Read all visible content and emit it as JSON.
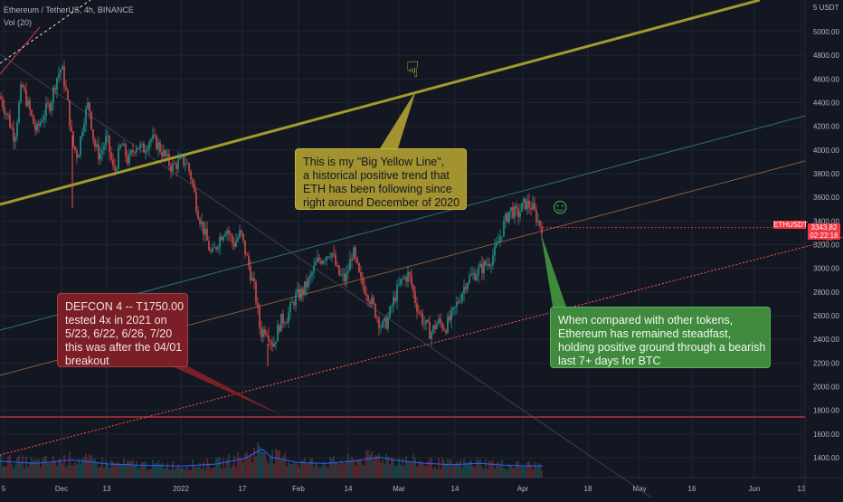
{
  "legend": {
    "title": "Ethereum / TetherUS, 4h, BINANCE",
    "volume": "Vol (20)"
  },
  "currency": "5 USDT",
  "ticker_label": "ETHUSDT",
  "last_price": "3343.82",
  "countdown": "02:22:18",
  "emoji_pointer": "☟",
  "emoji_smile": "☺",
  "notes": {
    "yellow": [
      "This is my \"Big Yellow Line\",",
      "a historical positive trend that",
      "ETH has been following since",
      "right around December of 2020"
    ],
    "red": [
      "DEFCON 4 -- T1750.00",
      "tested 4x in 2021 on",
      "5/23, 6/22, 6/26, 7/20",
      "this was after the 04/01",
      "breakout"
    ],
    "green": [
      "When compared with other tokens,",
      "Ethereum has remained steadfast,",
      "holding positive ground through a bearish",
      "last 7+ days for BTC"
    ]
  },
  "colors": {
    "background": "#131722",
    "up": "#26a69a",
    "down": "#ef5350",
    "yellow_line": "#a39a2c",
    "support_dotted": "#e04848",
    "horizontal_level": "#d9343e",
    "volume_line": "#2962ff"
  },
  "chart_data": {
    "type": "candlestick",
    "title": "Ethereum / TetherUS, 4h, BINANCE",
    "x_ticks": [
      "5",
      "Dec",
      "13",
      "2022",
      "17",
      "Feb",
      "14",
      "Mar",
      "14",
      "Apr",
      "18",
      "May",
      "16",
      "Jun",
      "13"
    ],
    "y_ticks": [
      1400,
      1600,
      1800,
      2000,
      2200,
      2400,
      2600,
      2800,
      3000,
      3200,
      3400,
      3600,
      3800,
      4000,
      4200,
      4400,
      4600,
      4800,
      5000
    ],
    "ylim": [
      1300,
      5100
    ],
    "close_path": [
      [
        0,
        4450
      ],
      [
        8,
        4300
      ],
      [
        16,
        4100
      ],
      [
        24,
        4550
      ],
      [
        32,
        4350
      ],
      [
        40,
        4150
      ],
      [
        48,
        4300
      ],
      [
        56,
        4400
      ],
      [
        62,
        4600
      ],
      [
        68,
        4700
      ],
      [
        74,
        4450
      ],
      [
        80,
        4050
      ],
      [
        86,
        3950
      ],
      [
        92,
        4250
      ],
      [
        98,
        4400
      ],
      [
        104,
        4050
      ],
      [
        110,
        3950
      ],
      [
        118,
        4100
      ],
      [
        126,
        3800
      ],
      [
        134,
        4050
      ],
      [
        142,
        3900
      ],
      [
        150,
        4050
      ],
      [
        158,
        4000
      ],
      [
        166,
        4100
      ],
      [
        174,
        4050
      ],
      [
        182,
        3950
      ],
      [
        190,
        3850
      ],
      [
        198,
        3900
      ],
      [
        206,
        3900
      ],
      [
        212,
        3750
      ],
      [
        218,
        3500
      ],
      [
        226,
        3300
      ],
      [
        234,
        3100
      ],
      [
        242,
        3250
      ],
      [
        250,
        3350
      ],
      [
        258,
        3200
      ],
      [
        266,
        3300
      ],
      [
        274,
        3050
      ],
      [
        282,
        2800
      ],
      [
        288,
        2450
      ],
      [
        294,
        2500
      ],
      [
        302,
        2350
      ],
      [
        310,
        2550
      ],
      [
        318,
        2600
      ],
      [
        326,
        2750
      ],
      [
        334,
        2800
      ],
      [
        342,
        2900
      ],
      [
        350,
        3050
      ],
      [
        358,
        3100
      ],
      [
        366,
        3150
      ],
      [
        374,
        2950
      ],
      [
        382,
        2900
      ],
      [
        390,
        3150
      ],
      [
        398,
        2900
      ],
      [
        406,
        2800
      ],
      [
        414,
        2650
      ],
      [
        422,
        2500
      ],
      [
        428,
        2550
      ],
      [
        436,
        2750
      ],
      [
        444,
        2900
      ],
      [
        452,
        2950
      ],
      [
        460,
        2700
      ],
      [
        468,
        2550
      ],
      [
        476,
        2450
      ],
      [
        484,
        2550
      ],
      [
        492,
        2500
      ],
      [
        500,
        2600
      ],
      [
        508,
        2750
      ],
      [
        516,
        2900
      ],
      [
        524,
        2950
      ],
      [
        532,
        3000
      ],
      [
        540,
        3050
      ],
      [
        548,
        3150
      ],
      [
        556,
        3350
      ],
      [
        564,
        3500
      ],
      [
        572,
        3450
      ],
      [
        580,
        3550
      ],
      [
        588,
        3520
      ],
      [
        596,
        3380
      ],
      [
        600,
        3343
      ]
    ],
    "volume_path": [
      [
        0,
        240
      ],
      [
        40,
        210
      ],
      [
        80,
        260
      ],
      [
        120,
        200
      ],
      [
        160,
        180
      ],
      [
        200,
        170
      ],
      [
        240,
        200
      ],
      [
        270,
        280
      ],
      [
        290,
        420
      ],
      [
        300,
        300
      ],
      [
        330,
        220
      ],
      [
        360,
        210
      ],
      [
        390,
        240
      ],
      [
        420,
        300
      ],
      [
        440,
        250
      ],
      [
        470,
        210
      ],
      [
        500,
        190
      ],
      [
        530,
        210
      ],
      [
        560,
        180
      ],
      [
        590,
        170
      ],
      [
        600,
        175
      ]
    ],
    "volume_ylim": [
      0,
      1000
    ],
    "current_price": 3343.82
  }
}
